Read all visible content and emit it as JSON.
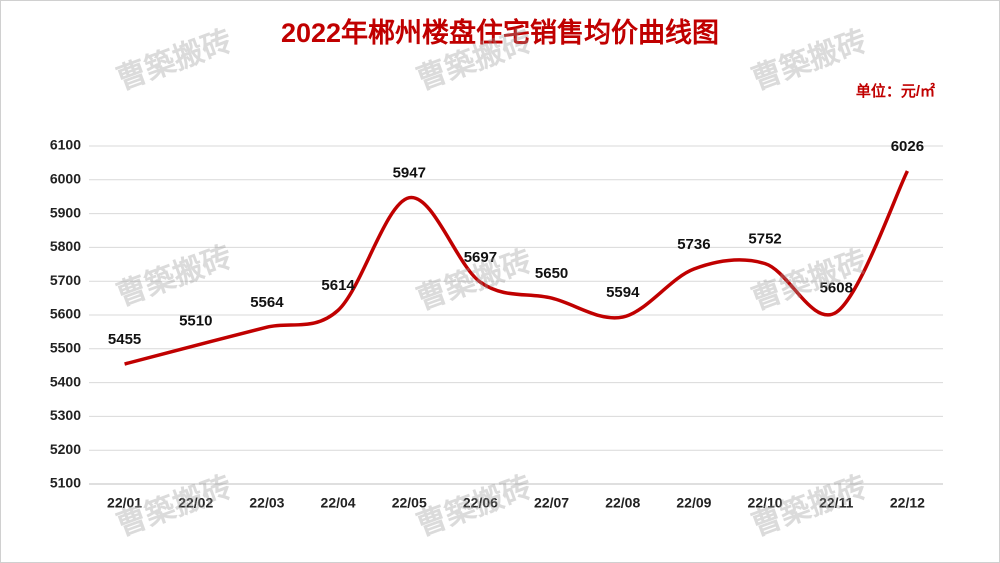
{
  "chart_data": {
    "type": "line",
    "title": "2022年郴州楼盘住宅销售均价曲线图",
    "unit_label": "单位：元/㎡",
    "watermark": "曹築搬砖",
    "categories": [
      "22/01",
      "22/02",
      "22/03",
      "22/04",
      "22/05",
      "22/06",
      "22/07",
      "22/08",
      "22/09",
      "22/10",
      "22/11",
      "22/12"
    ],
    "values": [
      5455,
      5510,
      5564,
      5614,
      5947,
      5697,
      5650,
      5594,
      5736,
      5752,
      5608,
      6026
    ],
    "color": "#c00000",
    "ylim": [
      5100,
      6100
    ],
    "yticks": [
      5100,
      5200,
      5300,
      5400,
      5500,
      5600,
      5700,
      5800,
      5900,
      6000,
      6100
    ],
    "grid": true
  }
}
